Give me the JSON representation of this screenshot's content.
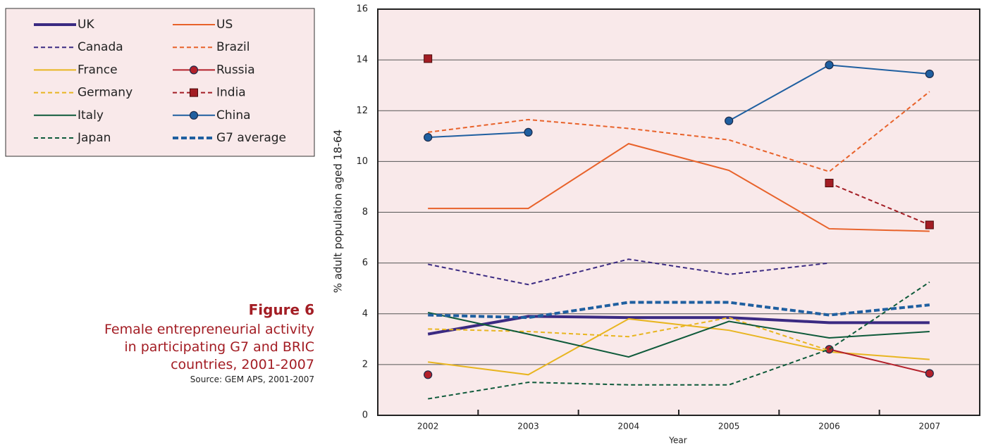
{
  "chart_data": {
    "type": "line",
    "figure_label": "Figure 6",
    "title": "Female entrepreneurial activity in participating G7 and BRIC countries, 2001-2007",
    "source": "Source: GEM APS, 2001-2007",
    "x_label": "Year",
    "y_label": "% adult population aged 18-64",
    "categories": [
      "2002",
      "2003",
      "2004",
      "2005",
      "2006",
      "2007"
    ],
    "ylim": [
      0,
      16
    ],
    "yticks": [
      0,
      2,
      4,
      6,
      8,
      10,
      12,
      14,
      16
    ],
    "grid": true,
    "series": [
      {
        "name": "UK",
        "color": "#3b2a82",
        "dash": false,
        "thick": true,
        "values": [
          3.2,
          3.9,
          3.85,
          3.85,
          3.65,
          3.65
        ]
      },
      {
        "name": "US",
        "color": "#e8622a",
        "dash": false,
        "values": [
          8.15,
          8.15,
          10.7,
          9.65,
          7.35,
          7.25
        ]
      },
      {
        "name": "Canada",
        "color": "#3b2a82",
        "dash": true,
        "values": [
          5.95,
          5.15,
          6.15,
          5.55,
          6.0,
          null
        ]
      },
      {
        "name": "Brazil",
        "color": "#e8622a",
        "dash": true,
        "values": [
          11.15,
          11.65,
          11.3,
          10.85,
          9.6,
          12.75
        ]
      },
      {
        "name": "France",
        "color": "#e8b520",
        "dash": false,
        "values": [
          2.1,
          1.6,
          3.8,
          3.35,
          2.5,
          2.2
        ]
      },
      {
        "name": "Russia",
        "color": "#b3202a",
        "dash": false,
        "marker": "circle",
        "values": [
          1.6,
          null,
          null,
          null,
          2.6,
          1.65
        ]
      },
      {
        "name": "Germany",
        "color": "#e8b520",
        "dash": true,
        "values": [
          3.4,
          3.3,
          3.1,
          3.85,
          2.55,
          null
        ]
      },
      {
        "name": "India",
        "color": "#a31d24",
        "dash": true,
        "marker": "square",
        "values": [
          14.05,
          null,
          null,
          null,
          9.15,
          7.5
        ]
      },
      {
        "name": "Italy",
        "color": "#0e5a3a",
        "dash": false,
        "values": [
          4.05,
          3.2,
          2.3,
          3.7,
          3.05,
          3.3
        ]
      },
      {
        "name": "China",
        "color": "#1f5fa0",
        "dash": false,
        "marker": "circle",
        "values": [
          10.95,
          11.15,
          null,
          11.6,
          13.8,
          13.45
        ]
      },
      {
        "name": "Japan",
        "color": "#0e5a3a",
        "dash": true,
        "values": [
          0.65,
          1.3,
          1.2,
          1.2,
          2.6,
          5.25
        ]
      },
      {
        "name": "G7 average",
        "color": "#1f5fa0",
        "dash": true,
        "thick": true,
        "values": [
          3.95,
          3.85,
          4.45,
          4.45,
          3.95,
          4.35
        ]
      }
    ]
  }
}
